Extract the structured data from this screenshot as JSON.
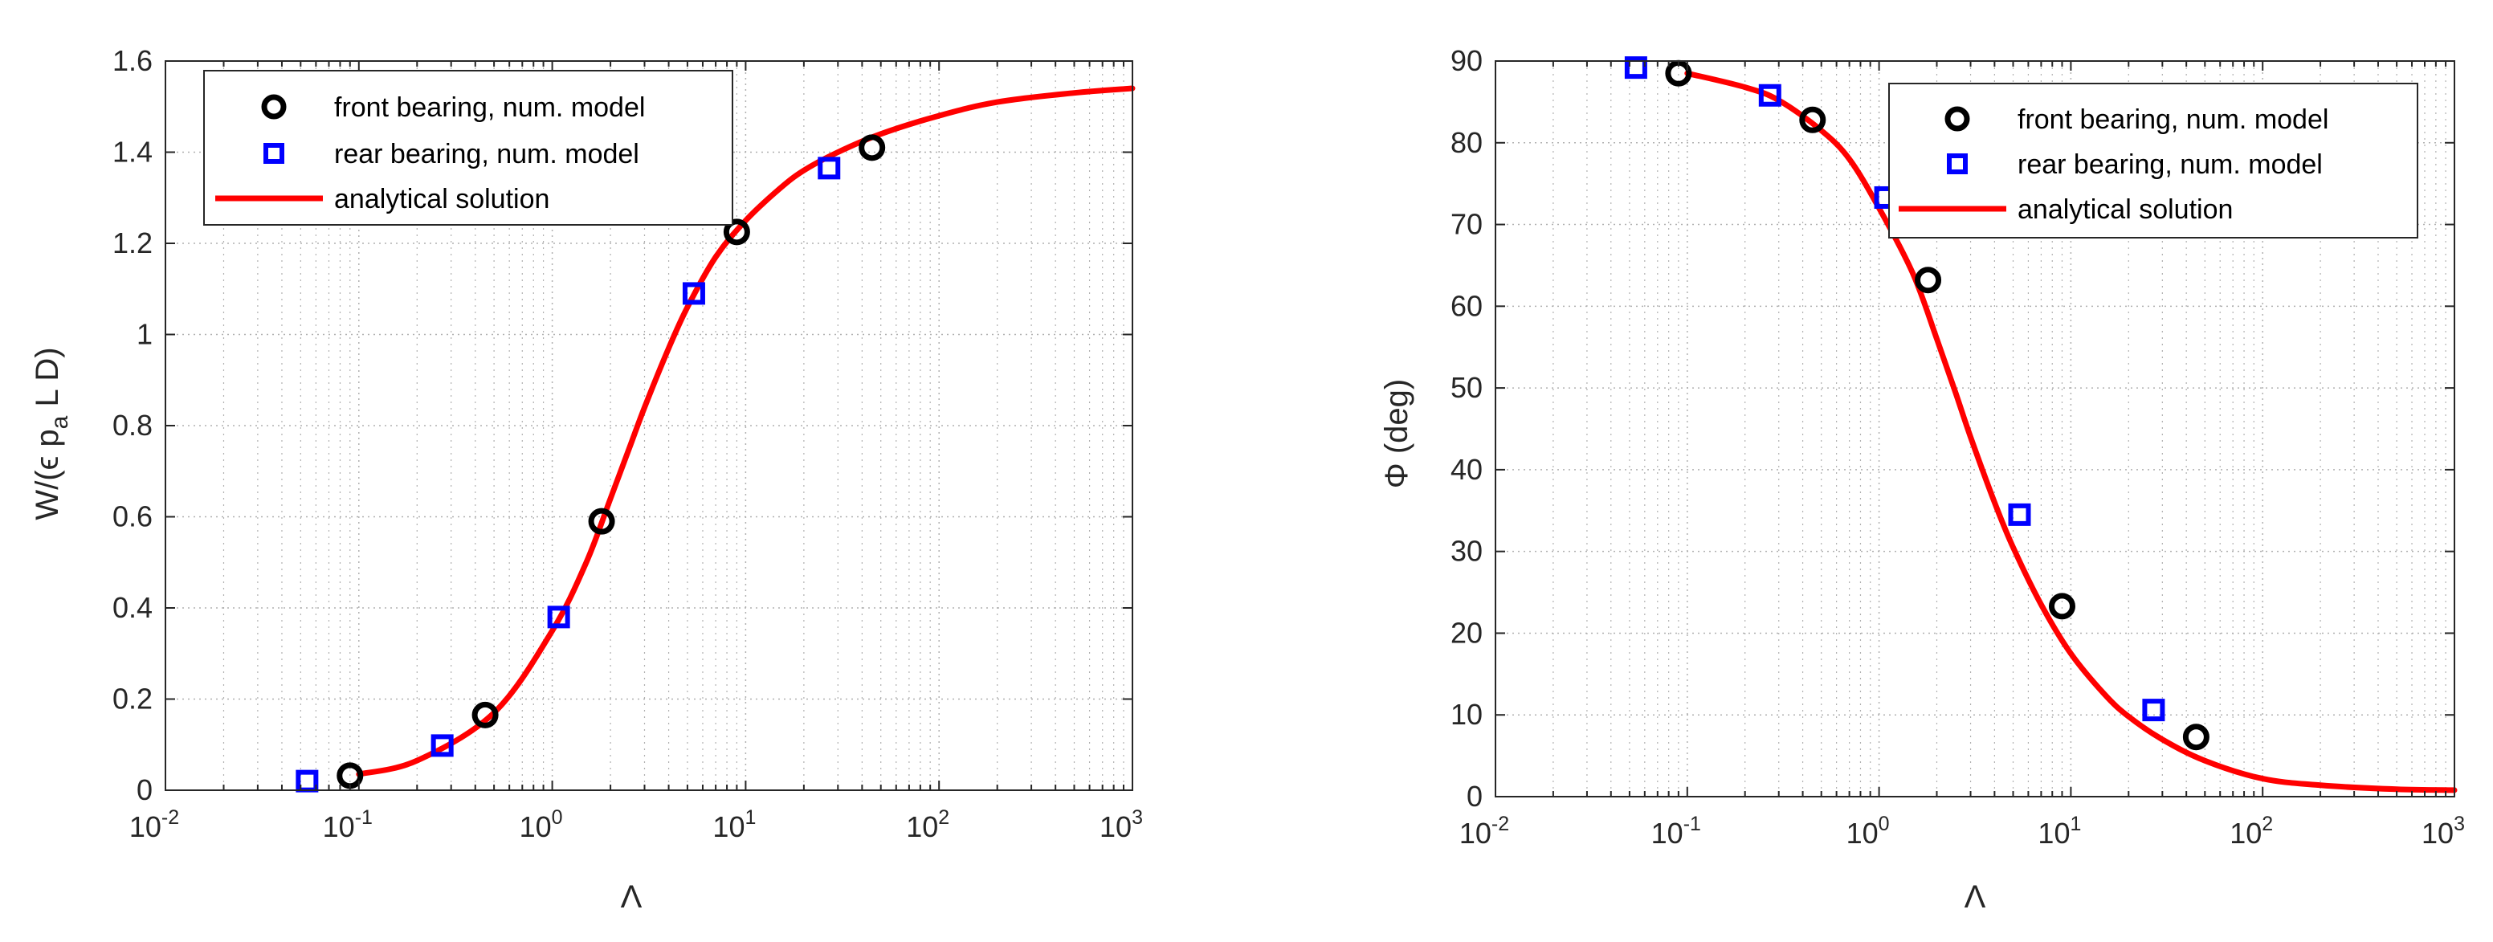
{
  "colors": {
    "front_marker": "#000000",
    "rear_marker": "#0000ff",
    "analytical_line": "#ff0000",
    "axes": "#262626",
    "grid": "#b0b0b0"
  },
  "chart_data": [
    {
      "type": "scatter",
      "x_scale": "log",
      "xlim": [
        0.01,
        1000
      ],
      "ylim": [
        0,
        1.6
      ],
      "xlabel": "Λ",
      "ylabel": "W/(ϵ p_a L D)",
      "ylabel_parts": {
        "pre": "W/(ϵ p",
        "sub": "a",
        "post": " L D)"
      },
      "x_ticks": [
        {
          "base": "10",
          "exp": "-2",
          "value": 0.01
        },
        {
          "base": "10",
          "exp": "-1",
          "value": 0.1
        },
        {
          "base": "10",
          "exp": "0",
          "value": 1
        },
        {
          "base": "10",
          "exp": "1",
          "value": 10
        },
        {
          "base": "10",
          "exp": "2",
          "value": 100
        },
        {
          "base": "10",
          "exp": "3",
          "value": 1000
        }
      ],
      "y_ticks": [
        {
          "label": "0",
          "value": 0
        },
        {
          "label": "0.2",
          "value": 0.2
        },
        {
          "label": "0.4",
          "value": 0.4
        },
        {
          "label": "0.6",
          "value": 0.6
        },
        {
          "label": "0.8",
          "value": 0.8
        },
        {
          "label": "1",
          "value": 1.0
        },
        {
          "label": "1.2",
          "value": 1.2
        },
        {
          "label": "1.4",
          "value": 1.4
        },
        {
          "label": "1.6",
          "value": 1.6
        }
      ],
      "grid": "on (major and minor, dotted)",
      "legend_position": "top-left",
      "series": [
        {
          "name": "front bearing, num. model",
          "marker": "circle",
          "x": [
            0.09,
            0.45,
            1.8,
            9.0,
            45
          ],
          "y": [
            0.032,
            0.165,
            0.59,
            1.225,
            1.41
          ]
        },
        {
          "name": "rear bearing, num. model",
          "marker": "square",
          "x": [
            0.054,
            0.27,
            1.08,
            5.4,
            27
          ],
          "y": [
            0.02,
            0.098,
            0.38,
            1.09,
            1.365
          ]
        },
        {
          "name": "analytical solution",
          "style": "line",
          "x": [
            0.1,
            0.2,
            0.5,
            1,
            1.5,
            2,
            2.5,
            3,
            4,
            5,
            7,
            10,
            15,
            20,
            30,
            50,
            100,
            200,
            500,
            1000
          ],
          "y": [
            0.035,
            0.065,
            0.17,
            0.35,
            0.5,
            0.64,
            0.75,
            0.84,
            0.97,
            1.06,
            1.17,
            1.25,
            1.32,
            1.36,
            1.4,
            1.44,
            1.48,
            1.51,
            1.53,
            1.54
          ]
        }
      ]
    },
    {
      "type": "scatter",
      "x_scale": "log",
      "xlim": [
        0.01,
        1000
      ],
      "ylim": [
        0,
        90
      ],
      "xlabel": "Λ",
      "ylabel": "Φ (deg)",
      "x_ticks": [
        {
          "base": "10",
          "exp": "-2",
          "value": 0.01
        },
        {
          "base": "10",
          "exp": "-1",
          "value": 0.1
        },
        {
          "base": "10",
          "exp": "0",
          "value": 1
        },
        {
          "base": "10",
          "exp": "1",
          "value": 10
        },
        {
          "base": "10",
          "exp": "2",
          "value": 100
        },
        {
          "base": "10",
          "exp": "3",
          "value": 1000
        }
      ],
      "y_ticks": [
        {
          "label": "0",
          "value": 0
        },
        {
          "label": "10",
          "value": 10
        },
        {
          "label": "20",
          "value": 20
        },
        {
          "label": "30",
          "value": 30
        },
        {
          "label": "40",
          "value": 40
        },
        {
          "label": "50",
          "value": 50
        },
        {
          "label": "60",
          "value": 60
        },
        {
          "label": "70",
          "value": 70
        },
        {
          "label": "80",
          "value": 80
        },
        {
          "label": "90",
          "value": 90
        }
      ],
      "grid": "on (major and minor, dotted)",
      "legend_position": "top-right",
      "series": [
        {
          "name": "front bearing, num. model",
          "marker": "circle",
          "x": [
            0.09,
            0.45,
            1.8,
            9.0,
            45
          ],
          "y": [
            88.5,
            82.8,
            63.2,
            23.3,
            7.3
          ]
        },
        {
          "name": "rear bearing, num. model",
          "marker": "square",
          "x": [
            0.054,
            0.27,
            1.08,
            5.4,
            27
          ],
          "y": [
            89.2,
            85.8,
            73.3,
            34.5,
            10.6
          ]
        },
        {
          "name": "analytical solution",
          "style": "line",
          "x": [
            0.1,
            0.2,
            0.3,
            0.5,
            0.7,
            1,
            1.5,
            2,
            2.5,
            3,
            4,
            5,
            7,
            10,
            15,
            20,
            30,
            50,
            100,
            200,
            500,
            1000
          ],
          "y": [
            88.5,
            86.8,
            85.2,
            81.5,
            78,
            72,
            64,
            56,
            49.5,
            44,
            36,
            30.5,
            23.5,
            17.5,
            12.5,
            9.8,
            7,
            4.4,
            2.2,
            1.4,
            0.9,
            0.8
          ]
        }
      ]
    }
  ]
}
